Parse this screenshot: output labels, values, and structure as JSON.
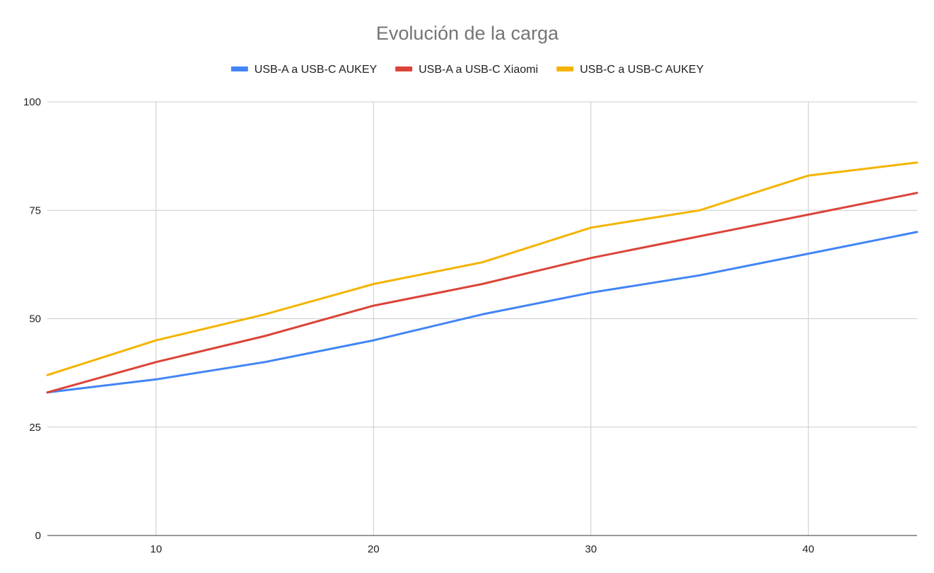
{
  "chart_data": {
    "type": "line",
    "title": "Evolución de la carga",
    "xlabel": "",
    "ylabel": "",
    "x": [
      5,
      10,
      15,
      20,
      25,
      30,
      35,
      40,
      45
    ],
    "xlim": [
      5,
      45
    ],
    "ylim": [
      0,
      100
    ],
    "x_ticks": [
      10,
      20,
      30,
      40
    ],
    "y_ticks": [
      0,
      25,
      50,
      75,
      100
    ],
    "grid": true,
    "legend_position": "top",
    "series": [
      {
        "name": "USB-A a USB-C AUKEY",
        "color": "#4285f4",
        "values": [
          33,
          36,
          40,
          45,
          51,
          56,
          60,
          65,
          70
        ]
      },
      {
        "name": "USB-A a USB-C Xiaomi",
        "color": "#db4437",
        "values": [
          33,
          40,
          46,
          53,
          58,
          64,
          69,
          74,
          79
        ]
      },
      {
        "name": "USB-C a USB-C AUKEY",
        "color": "#f4b400",
        "values": [
          37,
          45,
          51,
          58,
          63,
          71,
          75,
          83,
          86
        ]
      }
    ]
  }
}
